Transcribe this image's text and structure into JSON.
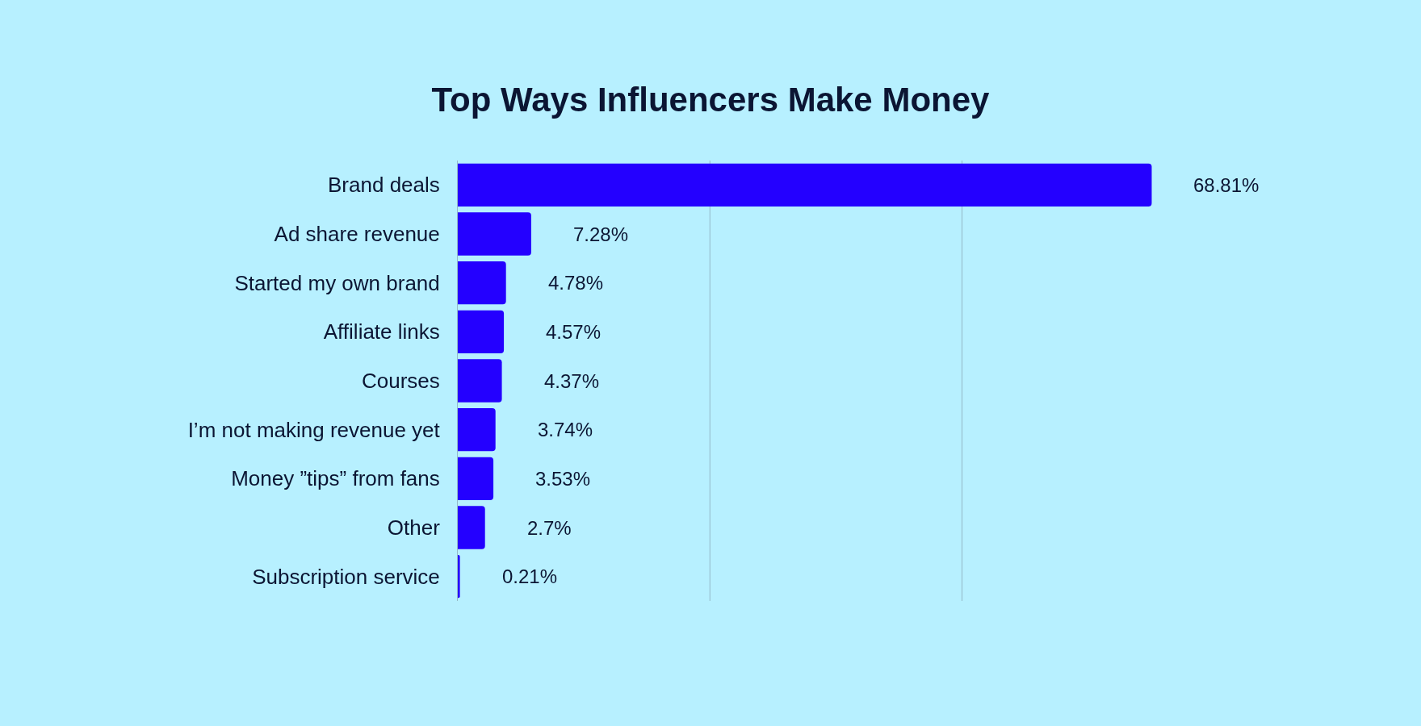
{
  "chart_data": {
    "type": "bar",
    "orientation": "horizontal",
    "title": "Top Ways Influencers Make Money",
    "categories": [
      "Brand deals",
      "Ad share revenue",
      "Started my own brand",
      "Affiliate links",
      "Courses",
      "I’m not making revenue yet",
      "Money ”tips” from fans",
      "Other",
      "Subscription service"
    ],
    "values": [
      68.81,
      7.28,
      4.78,
      4.57,
      4.37,
      3.74,
      3.53,
      2.7,
      0.21
    ],
    "value_labels": [
      "68.81%",
      "7.28%",
      "4.78%",
      "4.57%",
      "4.37%",
      "3.74%",
      "3.53%",
      "2.7%",
      "0.21%"
    ],
    "color": "#2400ff",
    "ref_lines": [
      {
        "axis": "x",
        "value": 25,
        "color": "#94b8c8"
      },
      {
        "axis": "x",
        "value": 50,
        "color": "#94b8c8"
      }
    ],
    "tick_labels": "y"
  }
}
